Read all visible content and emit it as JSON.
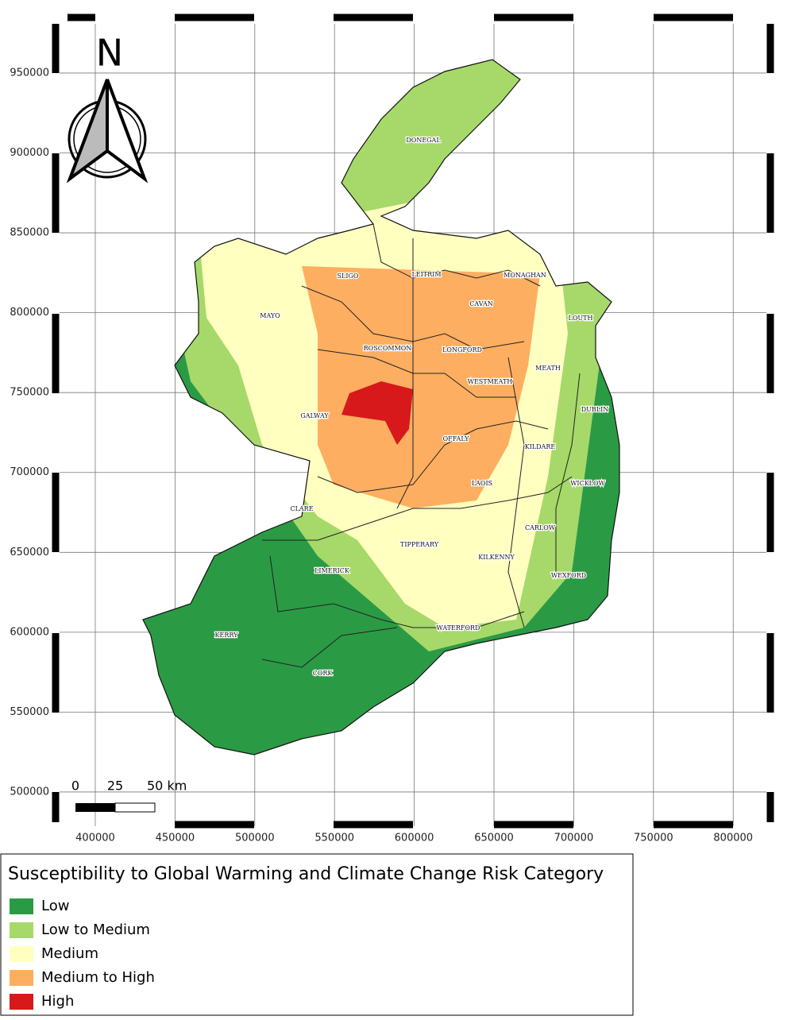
{
  "map": {
    "north_arrow": "N",
    "xlim": [
      377600,
      820800
    ],
    "ylim": [
      478600,
      980800
    ],
    "xticks": [
      400000,
      450000,
      500000,
      550000,
      600000,
      650000,
      700000,
      750000,
      800000
    ],
    "yticks": [
      500000,
      550000,
      600000,
      650000,
      700000,
      750000,
      800000,
      850000,
      900000,
      950000
    ],
    "grid": true,
    "scale_bar": [
      "0",
      "25",
      "50 km"
    ],
    "counties": [
      "DONEGAL",
      "SLIGO",
      "LEITRIM",
      "MONAGHAN",
      "CAVAN",
      "LOUTH",
      "MAYO",
      "ROSCOMMON",
      "LONGFORD",
      "MEATH",
      "WESTMEATH",
      "GALWAY",
      "DUBLIN",
      "OFFALY",
      "KILDARE",
      "WICKLOW",
      "LAOIS",
      "CLARE",
      "CARLOW",
      "TIPPERARY",
      "KILKENNY",
      "LIMERICK",
      "WEXFORD",
      "KERRY",
      "WATERFORD",
      "CORK"
    ]
  },
  "legend": {
    "title": "Susceptibility to Global Warming and Climate Change Risk Category",
    "items": [
      {
        "name": "Low",
        "color": "#2b9a45"
      },
      {
        "name": "Low to Medium",
        "color": "#a6d96a"
      },
      {
        "name": "Medium",
        "color": "#ffffc0"
      },
      {
        "name": "Medium to High",
        "color": "#fdae61"
      },
      {
        "name": "High",
        "color": "#d7191c"
      }
    ]
  }
}
